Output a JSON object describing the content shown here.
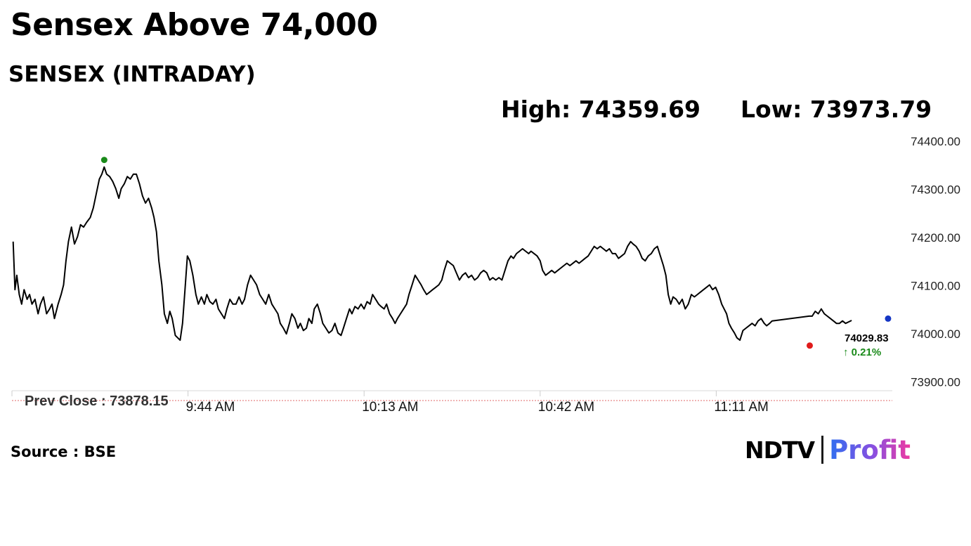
{
  "header": {
    "title": "Sensex Above 74,000",
    "subtitle": "SENSEX (INTRADAY)",
    "high_text": "High: 74359.69",
    "low_text": "Low: 73973.79"
  },
  "footer": {
    "source": "Source : BSE",
    "logo_main": "NDTV",
    "logo_sub": "Profit"
  },
  "chart_data": {
    "type": "line",
    "x_ticks": [
      "9:44 AM",
      "10:13 AM",
      "10:42 AM",
      "11:11 AM"
    ],
    "x_tick_minutes": [
      584,
      613,
      642,
      671
    ],
    "x_start_minute": 555,
    "x_end_minute": 700,
    "y_ticks": [
      73900,
      74000,
      74100,
      74200,
      74300,
      74400
    ],
    "y_tick_labels": [
      "73900.00",
      "74000.00",
      "74100.00",
      "74200.00",
      "74300.00",
      "74400.00"
    ],
    "ylim": [
      73880,
      74400
    ],
    "prev_close": 73878.15,
    "prev_close_label": "Prev Close : 73878.15",
    "high": {
      "minute": 570.2,
      "value": 74359.69,
      "color": "#1a8a1a"
    },
    "low": {
      "minute": 686.4,
      "value": 73973.79,
      "color": "#e01b1b"
    },
    "last": {
      "minute": 699.3,
      "value": 74029.83,
      "value_label": "74029.83",
      "change_label": "↑ 0.21%",
      "color": "#1536c4",
      "change_color": "#1a8a1a"
    },
    "line_color": "#000000",
    "series": [
      {
        "points": [
          [
            555.2,
            74190
          ],
          [
            555.5,
            74090
          ],
          [
            555.8,
            74120
          ],
          [
            556.2,
            74080
          ],
          [
            556.6,
            74060
          ],
          [
            557.0,
            74090
          ],
          [
            557.5,
            74070
          ],
          [
            557.9,
            74080
          ],
          [
            558.3,
            74060
          ],
          [
            558.8,
            74070
          ],
          [
            559.3,
            74040
          ],
          [
            559.7,
            74060
          ],
          [
            560.2,
            74075
          ],
          [
            560.7,
            74040
          ],
          [
            561.2,
            74050
          ],
          [
            561.6,
            74060
          ],
          [
            562.0,
            74030
          ],
          [
            562.6,
            74060
          ],
          [
            563.1,
            74080
          ],
          [
            563.5,
            74100
          ],
          [
            563.9,
            74150
          ],
          [
            564.3,
            74190
          ],
          [
            564.8,
            74220
          ],
          [
            565.3,
            74185
          ],
          [
            565.8,
            74200
          ],
          [
            566.3,
            74225
          ],
          [
            566.8,
            74220
          ],
          [
            567.3,
            74230
          ],
          [
            567.9,
            74240
          ],
          [
            568.4,
            74260
          ],
          [
            568.9,
            74290
          ],
          [
            569.4,
            74320
          ],
          [
            569.8,
            74330
          ],
          [
            570.2,
            74345
          ],
          [
            570.6,
            74330
          ],
          [
            571.1,
            74325
          ],
          [
            571.6,
            74315
          ],
          [
            572.1,
            74300
          ],
          [
            572.6,
            74280
          ],
          [
            573.0,
            74300
          ],
          [
            573.5,
            74310
          ],
          [
            574.0,
            74325
          ],
          [
            574.5,
            74320
          ],
          [
            575.0,
            74330
          ],
          [
            575.5,
            74330
          ],
          [
            576.0,
            74310
          ],
          [
            576.5,
            74285
          ],
          [
            577.0,
            74270
          ],
          [
            577.5,
            74280
          ],
          [
            578.0,
            74260
          ],
          [
            578.4,
            74240
          ],
          [
            578.8,
            74210
          ],
          [
            579.2,
            74150
          ],
          [
            579.7,
            74100
          ],
          [
            580.1,
            74040
          ],
          [
            580.6,
            74020
          ],
          [
            581.0,
            74045
          ],
          [
            581.4,
            74030
          ],
          [
            581.9,
            73995
          ],
          [
            582.3,
            73990
          ],
          [
            582.7,
            73985
          ],
          [
            583.1,
            74020
          ],
          [
            583.5,
            74090
          ],
          [
            583.9,
            74160
          ],
          [
            584.3,
            74150
          ],
          [
            584.8,
            74120
          ],
          [
            585.3,
            74080
          ],
          [
            585.7,
            74060
          ],
          [
            586.2,
            74075
          ],
          [
            586.7,
            74060
          ],
          [
            587.1,
            74080
          ],
          [
            587.6,
            74065
          ],
          [
            588.1,
            74060
          ],
          [
            588.6,
            74070
          ],
          [
            589.0,
            74050
          ],
          [
            589.5,
            74040
          ],
          [
            590.0,
            74030
          ],
          [
            590.4,
            74050
          ],
          [
            590.9,
            74070
          ],
          [
            591.4,
            74060
          ],
          [
            591.9,
            74060
          ],
          [
            592.4,
            74075
          ],
          [
            592.9,
            74060
          ],
          [
            593.3,
            74070
          ],
          [
            593.8,
            74100
          ],
          [
            594.3,
            74120
          ],
          [
            594.8,
            74110
          ],
          [
            595.3,
            74100
          ],
          [
            595.8,
            74080
          ],
          [
            596.3,
            74070
          ],
          [
            596.8,
            74060
          ],
          [
            597.3,
            74080
          ],
          [
            597.8,
            74060
          ],
          [
            598.3,
            74050
          ],
          [
            598.8,
            74040
          ],
          [
            599.2,
            74020
          ],
          [
            599.7,
            74010
          ],
          [
            600.2,
            73998
          ],
          [
            600.7,
            74020
          ],
          [
            601.1,
            74040
          ],
          [
            601.6,
            74030
          ],
          [
            602.1,
            74010
          ],
          [
            602.5,
            74020
          ],
          [
            603.0,
            74005
          ],
          [
            603.5,
            74010
          ],
          [
            603.9,
            74030
          ],
          [
            604.4,
            74020
          ],
          [
            604.8,
            74050
          ],
          [
            605.3,
            74060
          ],
          [
            605.8,
            74040
          ],
          [
            606.2,
            74020
          ],
          [
            606.7,
            74010
          ],
          [
            607.2,
            74000
          ],
          [
            607.7,
            74005
          ],
          [
            608.2,
            74020
          ],
          [
            608.7,
            74000
          ],
          [
            609.2,
            73995
          ],
          [
            609.6,
            74010
          ],
          [
            610.1,
            74030
          ],
          [
            610.6,
            74050
          ],
          [
            611.0,
            74040
          ],
          [
            611.5,
            74055
          ],
          [
            612.0,
            74050
          ],
          [
            612.5,
            74060
          ],
          [
            613.0,
            74050
          ],
          [
            613.5,
            74065
          ],
          [
            614.0,
            74060
          ],
          [
            614.4,
            74080
          ],
          [
            614.9,
            74070
          ],
          [
            615.4,
            74060
          ],
          [
            615.8,
            74055
          ],
          [
            616.3,
            74050
          ],
          [
            616.7,
            74060
          ],
          [
            617.2,
            74040
          ],
          [
            617.7,
            74030
          ],
          [
            618.1,
            74020
          ],
          [
            618.5,
            74030
          ],
          [
            619.0,
            74040
          ],
          [
            619.5,
            74050
          ],
          [
            620.0,
            74060
          ],
          [
            620.4,
            74080
          ],
          [
            620.9,
            74100
          ],
          [
            621.4,
            74120
          ],
          [
            621.9,
            74110
          ],
          [
            622.4,
            74100
          ],
          [
            622.8,
            74090
          ],
          [
            623.3,
            74080
          ],
          [
            623.8,
            74085
          ],
          [
            624.3,
            74090
          ],
          [
            624.8,
            74095
          ],
          [
            625.3,
            74100
          ],
          [
            625.8,
            74110
          ],
          [
            626.2,
            74130
          ],
          [
            626.7,
            74150
          ],
          [
            627.2,
            74145
          ],
          [
            627.7,
            74140
          ],
          [
            628.2,
            74125
          ],
          [
            628.7,
            74110
          ],
          [
            629.2,
            74120
          ],
          [
            629.7,
            74125
          ],
          [
            630.2,
            74115
          ],
          [
            630.7,
            74120
          ],
          [
            631.2,
            74110
          ],
          [
            631.7,
            74115
          ],
          [
            632.2,
            74125
          ],
          [
            632.7,
            74130
          ],
          [
            633.2,
            74125
          ],
          [
            633.7,
            74110
          ],
          [
            634.2,
            74115
          ],
          [
            634.7,
            74110
          ],
          [
            635.2,
            74115
          ],
          [
            635.7,
            74110
          ],
          [
            636.2,
            74130
          ],
          [
            636.7,
            74150
          ],
          [
            637.2,
            74160
          ],
          [
            637.6,
            74155
          ],
          [
            638.1,
            74165
          ],
          [
            638.6,
            74170
          ],
          [
            639.1,
            74175
          ],
          [
            639.6,
            74170
          ],
          [
            640.1,
            74165
          ],
          [
            640.5,
            74170
          ],
          [
            641.0,
            74165
          ],
          [
            641.5,
            74160
          ],
          [
            642.0,
            74150
          ],
          [
            642.4,
            74130
          ],
          [
            642.9,
            74120
          ],
          [
            643.4,
            74125
          ],
          [
            643.9,
            74130
          ],
          [
            644.4,
            74125
          ],
          [
            644.9,
            74130
          ],
          [
            645.4,
            74135
          ],
          [
            645.9,
            74140
          ],
          [
            646.4,
            74145
          ],
          [
            646.9,
            74140
          ],
          [
            647.4,
            74145
          ],
          [
            647.9,
            74150
          ],
          [
            648.4,
            74145
          ],
          [
            648.9,
            74150
          ],
          [
            649.4,
            74155
          ],
          [
            649.9,
            74160
          ],
          [
            650.4,
            74170
          ],
          [
            650.9,
            74180
          ],
          [
            651.4,
            74175
          ],
          [
            651.9,
            74180
          ],
          [
            652.4,
            74175
          ],
          [
            652.9,
            74170
          ],
          [
            653.4,
            74175
          ],
          [
            653.9,
            74165
          ],
          [
            654.4,
            74165
          ],
          [
            654.9,
            74155
          ],
          [
            655.4,
            74160
          ],
          [
            655.9,
            74165
          ],
          [
            656.4,
            74180
          ],
          [
            656.9,
            74190
          ],
          [
            657.3,
            74185
          ],
          [
            657.8,
            74180
          ],
          [
            658.3,
            74170
          ],
          [
            658.8,
            74155
          ],
          [
            659.3,
            74150
          ],
          [
            659.8,
            74160
          ],
          [
            660.3,
            74165
          ],
          [
            660.8,
            74175
          ],
          [
            661.3,
            74180
          ],
          [
            661.8,
            74160
          ],
          [
            662.3,
            74140
          ],
          [
            662.7,
            74120
          ],
          [
            663.1,
            74080
          ],
          [
            663.5,
            74060
          ],
          [
            663.9,
            74075
          ],
          [
            664.4,
            74070
          ],
          [
            664.9,
            74060
          ],
          [
            665.4,
            74070
          ],
          [
            665.9,
            74050
          ],
          [
            666.4,
            74060
          ],
          [
            666.9,
            74080
          ],
          [
            667.4,
            74075
          ],
          [
            667.9,
            74080
          ],
          [
            668.4,
            74085
          ],
          [
            668.9,
            74090
          ],
          [
            669.4,
            74095
          ],
          [
            669.9,
            74100
          ],
          [
            670.4,
            74090
          ],
          [
            670.9,
            74095
          ],
          [
            671.4,
            74080
          ],
          [
            671.9,
            74060
          ],
          [
            672.3,
            74050
          ],
          [
            672.7,
            74040
          ],
          [
            673.1,
            74020
          ],
          [
            673.5,
            74010
          ],
          [
            674.0,
            74000
          ],
          [
            674.4,
            73990
          ],
          [
            674.9,
            73985
          ],
          [
            675.4,
            74005
          ],
          [
            675.9,
            74010
          ],
          [
            676.4,
            74015
          ],
          [
            676.9,
            74020
          ],
          [
            677.4,
            74015
          ],
          [
            677.9,
            74025
          ],
          [
            678.4,
            74030
          ],
          [
            678.9,
            74020
          ],
          [
            679.3,
            74015
          ],
          [
            679.8,
            74020
          ],
          [
            680.2,
            74025
          ],
          [
            686.3,
            74035
          ],
          [
            686.8,
            74035
          ],
          [
            687.3,
            74045
          ],
          [
            687.8,
            74040
          ],
          [
            688.3,
            74050
          ],
          [
            688.8,
            74040
          ],
          [
            689.3,
            74035
          ],
          [
            689.8,
            74030
          ],
          [
            690.3,
            74025
          ],
          [
            690.8,
            74020
          ],
          [
            691.3,
            74020
          ],
          [
            691.8,
            74025
          ],
          [
            692.3,
            74020
          ],
          [
            692.8,
            74023
          ],
          [
            693.3,
            74026
          ]
        ]
      }
    ]
  }
}
